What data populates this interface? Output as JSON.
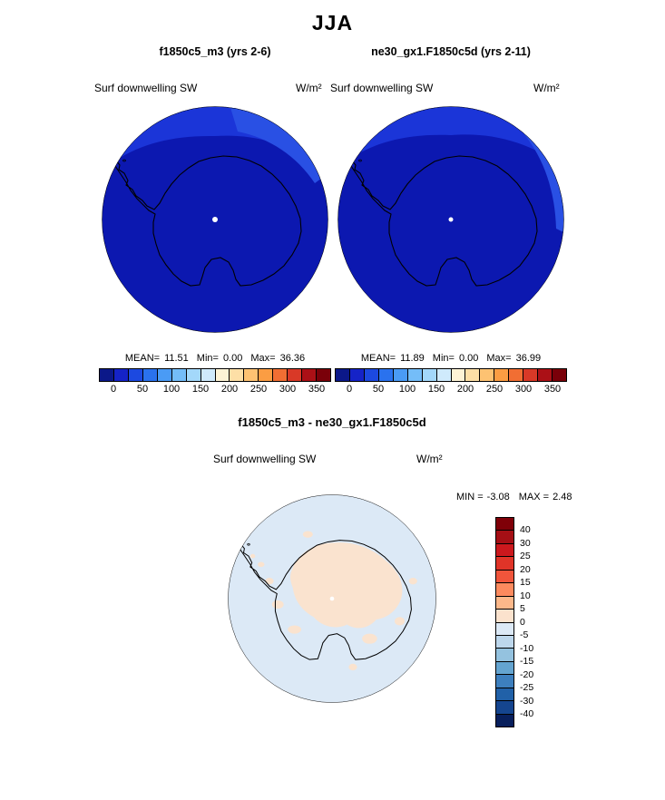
{
  "title": "JJA",
  "panels": [
    {
      "header": "f1850c5_m3 (yrs 2-6)",
      "subtitle": "Surf downwelling SW",
      "units": "W/m²",
      "stats": {
        "mean_label": "MEAN=",
        "mean": "11.51",
        "min_label": "Min=",
        "min": "0.00",
        "max_label": "Max=",
        "max": "36.36"
      }
    },
    {
      "header": "ne30_gx1.F1850c5d (yrs 2-11)",
      "subtitle": "Surf downwelling SW",
      "units": "W/m²",
      "stats": {
        "mean_label": "MEAN=",
        "mean": "11.89",
        "min_label": "Min=",
        "min": "0.00",
        "max_label": "Max=",
        "max": "36.99"
      }
    }
  ],
  "diff_panel": {
    "header": "f1850c5_m3 - ne30_gx1.F1850c5d",
    "subtitle": "Surf downwelling SW",
    "units": "W/m²",
    "stats": {
      "min_label": "MIN =",
      "min": "-3.08",
      "max_label": "MAX =",
      "max": "2.48"
    }
  },
  "colorbar": {
    "tick_labels": [
      "0",
      "50",
      "100",
      "150",
      "200",
      "250",
      "300",
      "350"
    ],
    "colors": [
      "#0B1889",
      "#1523C8",
      "#1C49E0",
      "#2A72EE",
      "#4A9BF5",
      "#74BDF8",
      "#A3D8FA",
      "#CFEAFC",
      "#FDF3D5",
      "#FDDFA6",
      "#FDC272",
      "#FB9D43",
      "#F16E33",
      "#D93927",
      "#AB1016",
      "#7A0009"
    ]
  },
  "diff_colorbar": {
    "labels": [
      "40",
      "30",
      "25",
      "20",
      "15",
      "10",
      "5",
      "0",
      "-5",
      "-10",
      "-15",
      "-20",
      "-25",
      "-30",
      "-40"
    ],
    "colors": [
      "#7F0008",
      "#A50F15",
      "#CB181D",
      "#E03428",
      "#F0553B",
      "#FC8A5E",
      "#FDB88A",
      "#FBE2CD",
      "#DCE9F6",
      "#BDD7EC",
      "#94C2DF",
      "#64A4D0",
      "#3D7FBE",
      "#2161A8",
      "#15458F",
      "#081F5C"
    ]
  },
  "map_colors": {
    "panel_ocean": "#0C18B0",
    "panel_light_band": "#1B35D8",
    "panel_lighter_edge": "#2950E4",
    "diff_base": "#DCE9F6",
    "diff_positive_patch": "#FAE3CF",
    "coastline": "#000000",
    "pole_dot": "#FFFFFF"
  },
  "chart_data": [
    {
      "type": "heatmap",
      "subtype": "south-polar-stereographic-map",
      "season": "JJA",
      "title": "f1850c5_m3 (yrs 2-6)",
      "variable": "Surf downwelling SW",
      "units": "W/m^2",
      "stats": {
        "mean": 11.51,
        "min": 0.0,
        "max": 36.36
      },
      "colorbar_ticks": [
        0,
        50,
        100,
        150,
        200,
        250,
        300,
        350
      ],
      "legend_position": "bottom"
    },
    {
      "type": "heatmap",
      "subtype": "south-polar-stereographic-map",
      "season": "JJA",
      "title": "ne30_gx1.F1850c5d (yrs 2-11)",
      "variable": "Surf downwelling SW",
      "units": "W/m^2",
      "stats": {
        "mean": 11.89,
        "min": 0.0,
        "max": 36.99
      },
      "colorbar_ticks": [
        0,
        50,
        100,
        150,
        200,
        250,
        300,
        350
      ],
      "legend_position": "bottom"
    },
    {
      "type": "heatmap",
      "subtype": "south-polar-stereographic-map-difference",
      "season": "JJA",
      "title": "f1850c5_m3 - ne30_gx1.F1850c5d",
      "variable": "Surf downwelling SW",
      "units": "W/m^2",
      "stats": {
        "min": -3.08,
        "max": 2.48
      },
      "colorbar_levels": [
        40,
        30,
        25,
        20,
        15,
        10,
        5,
        0,
        -5,
        -10,
        -15,
        -20,
        -25,
        -30,
        -40
      ],
      "legend_position": "right"
    }
  ]
}
